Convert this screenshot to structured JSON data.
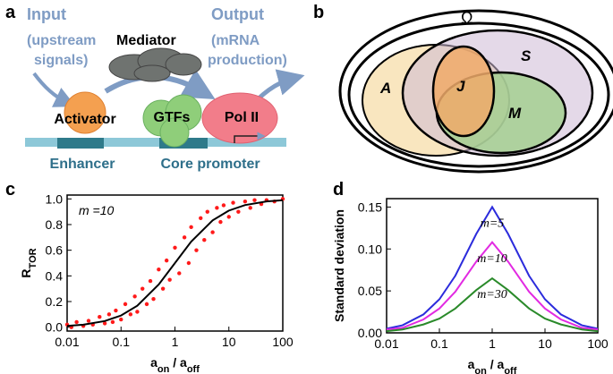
{
  "panel_a": {
    "letter": "a",
    "input": [
      "Input",
      "(upstream",
      "signals)"
    ],
    "mediator": "Mediator",
    "output": [
      "Output",
      "(mRNA",
      "production)"
    ],
    "activator": "Activator",
    "gtfs": "GTFs",
    "pol2": "Pol II",
    "enhancer": "Enhancer",
    "core_promoter": "Core promoter"
  },
  "panel_b": {
    "letter": "b",
    "omega": "Ω",
    "sets": [
      "A",
      "S",
      "J",
      "M"
    ]
  },
  "panel_letters": [
    "c",
    "d"
  ],
  "chart_data": [
    {
      "type": "scatter",
      "xscale": "log",
      "xlim": [
        0.01,
        100
      ],
      "ylim": [
        -0.03,
        1.03
      ],
      "xticks": [
        0.01,
        0.1,
        1,
        10,
        100
      ],
      "yticks": [
        {
          "value": 0,
          "label": "0.0"
        },
        {
          "value": 0.2,
          "label": "0.2"
        },
        {
          "value": 0.4,
          "label": "0.4"
        },
        {
          "value": 0.6,
          "label": "0.6"
        },
        {
          "value": 0.8,
          "label": "0.8"
        },
        {
          "value": 1,
          "label": "1.0"
        }
      ],
      "xlabel": [
        "a",
        "on",
        " / a",
        "off"
      ],
      "ylabel": [
        "R",
        "TOR"
      ],
      "annotation": "m =10",
      "series": [
        {
          "type": "scatter",
          "color": "#ff1a1a",
          "x": [
            0.01,
            0.012,
            0.015,
            0.02,
            0.025,
            0.03,
            0.04,
            0.05,
            0.06,
            0.07,
            0.08,
            0.1,
            0.12,
            0.15,
            0.18,
            0.2,
            0.25,
            0.3,
            0.35,
            0.4,
            0.5,
            0.6,
            0.7,
            0.8,
            1,
            1.2,
            1.5,
            1.8,
            2,
            2.5,
            3,
            3.5,
            4,
            5,
            6,
            7,
            8,
            10,
            12,
            15,
            20,
            25,
            30,
            40,
            50,
            70,
            100
          ],
          "values": [
            0.02,
            0.0,
            0.04,
            0.01,
            0.05,
            0.02,
            0.08,
            0.03,
            0.1,
            0.04,
            0.13,
            0.06,
            0.18,
            0.1,
            0.24,
            0.12,
            0.3,
            0.18,
            0.36,
            0.22,
            0.45,
            0.3,
            0.52,
            0.37,
            0.62,
            0.42,
            0.7,
            0.5,
            0.78,
            0.6,
            0.85,
            0.68,
            0.9,
            0.74,
            0.93,
            0.82,
            0.95,
            0.86,
            0.97,
            0.9,
            0.98,
            0.93,
            0.99,
            0.96,
            0.99,
            0.98,
            1.0
          ]
        },
        {
          "type": "line",
          "color": "#000000",
          "x": [
            0.01,
            0.02,
            0.05,
            0.1,
            0.2,
            0.5,
            1,
            2,
            5,
            10,
            20,
            50,
            100
          ],
          "values": [
            0.01,
            0.02,
            0.048,
            0.091,
            0.167,
            0.333,
            0.5,
            0.667,
            0.833,
            0.909,
            0.952,
            0.98,
            0.99
          ]
        }
      ]
    },
    {
      "type": "line",
      "xscale": "log",
      "xlim": [
        0.01,
        100
      ],
      "ylim": [
        0,
        0.16
      ],
      "xticks": [
        0.01,
        0.1,
        1,
        10,
        100
      ],
      "yticks": [
        {
          "value": 0,
          "label": "0.00"
        },
        {
          "value": 0.05,
          "label": "0.05"
        },
        {
          "value": 0.1,
          "label": "0.10"
        },
        {
          "value": 0.15,
          "label": "0.15"
        }
      ],
      "xlabel": [
        "a",
        "on",
        " / a",
        "off"
      ],
      "ylabel": [
        "Standard deviation"
      ],
      "series": [
        {
          "name": "m=5",
          "color": "#2b2bdc",
          "x": [
            0.01,
            0.02,
            0.05,
            0.1,
            0.2,
            0.5,
            1,
            2,
            5,
            10,
            20,
            50,
            100
          ],
          "values": [
            0.005,
            0.009,
            0.022,
            0.04,
            0.068,
            0.118,
            0.15,
            0.118,
            0.068,
            0.04,
            0.022,
            0.009,
            0.005
          ]
        },
        {
          "name": "m=10",
          "color": "#e22ae2",
          "x": [
            0.01,
            0.02,
            0.05,
            0.1,
            0.2,
            0.5,
            1,
            2,
            5,
            10,
            20,
            50,
            100
          ],
          "values": [
            0.004,
            0.006,
            0.016,
            0.029,
            0.049,
            0.085,
            0.108,
            0.085,
            0.049,
            0.029,
            0.016,
            0.006,
            0.004
          ]
        },
        {
          "name": "m=30",
          "color": "#2a8a2a",
          "x": [
            0.01,
            0.02,
            0.05,
            0.1,
            0.2,
            0.5,
            1,
            2,
            5,
            10,
            20,
            50,
            100
          ],
          "values": [
            0.002,
            0.004,
            0.01,
            0.017,
            0.029,
            0.051,
            0.065,
            0.051,
            0.029,
            0.017,
            0.01,
            0.004,
            0.002
          ]
        }
      ]
    }
  ]
}
